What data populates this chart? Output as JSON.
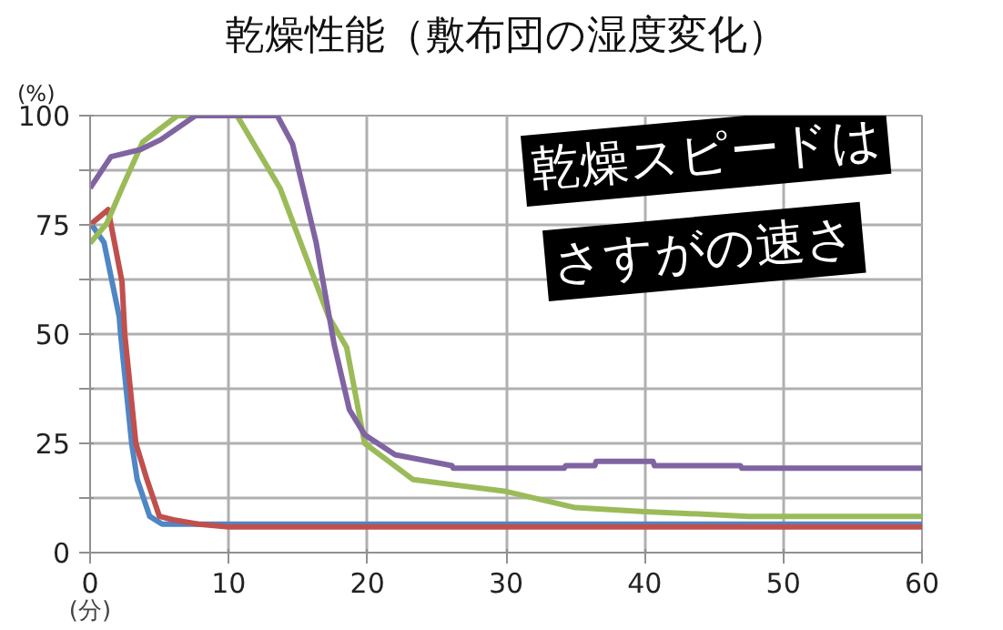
{
  "chart_data": {
    "type": "line",
    "title": "乾燥性能（敷布団の湿度変化）",
    "xlabel": "(分)",
    "ylabel": "(%)",
    "annotations": [
      "乾燥スピードは",
      "さすがの速さ"
    ],
    "xlim": [
      0,
      60
    ],
    "ylim": [
      0,
      100
    ],
    "xticks": [
      0,
      10,
      20,
      30,
      40,
      50,
      60
    ],
    "yticks": [
      0,
      {
        "value": 12.5,
        "label": null
      },
      25,
      {
        "value": 37.5,
        "label": null
      },
      50,
      {
        "value": 62.5,
        "label": null
      },
      75,
      {
        "value": 87.5,
        "label": null
      },
      100
    ],
    "grid": true,
    "marker": "none",
    "line_style": "solid",
    "series": [
      {
        "color": "#4f86c6",
        "x": [
          0,
          1,
          2.1,
          2.2,
          3.0,
          3.4,
          4.3,
          5.2,
          6,
          10,
          60
        ],
        "values": [
          75.5,
          71,
          54,
          50,
          25,
          16.7,
          8.3,
          6.5,
          6.5,
          6.5,
          6.5
        ]
      },
      {
        "color": "#c0504d",
        "x": [
          0,
          1.3,
          2.3,
          2.5,
          3.3,
          4.1,
          5.0,
          6.0,
          7.8,
          10,
          60
        ],
        "values": [
          75,
          78.5,
          62,
          50,
          25,
          16.7,
          8.3,
          7.5,
          6.5,
          5.9,
          5.9
        ]
      },
      {
        "color": "#9bbb59",
        "x": [
          0,
          1.2,
          2.3,
          3.8,
          6.3,
          10.6,
          13.7,
          17.2,
          18.5,
          19.8,
          23.3,
          30,
          35,
          40,
          47.5,
          60
        ],
        "values": [
          70.8,
          75.3,
          83.4,
          94,
          100,
          100,
          83.4,
          54,
          47,
          25,
          16.7,
          14,
          10.3,
          9.4,
          8.3,
          8.3
        ]
      },
      {
        "color": "#8064a2",
        "x": [
          0,
          1.5,
          3.6,
          5.1,
          7.6,
          13.5,
          14.6,
          16.3,
          17.6,
          18.7,
          19.8,
          22,
          26.1,
          26.2,
          34.2,
          34.3,
          36.4,
          36.5,
          40.6,
          40.7,
          46.9,
          47,
          60
        ],
        "values": [
          83.4,
          90.6,
          92.2,
          94.5,
          100,
          100,
          93.5,
          71,
          47.7,
          32.7,
          27,
          22.4,
          19.9,
          19.3,
          19.3,
          19.9,
          19.9,
          20.9,
          20.9,
          19.9,
          19.9,
          19.3,
          19.3
        ]
      }
    ]
  }
}
